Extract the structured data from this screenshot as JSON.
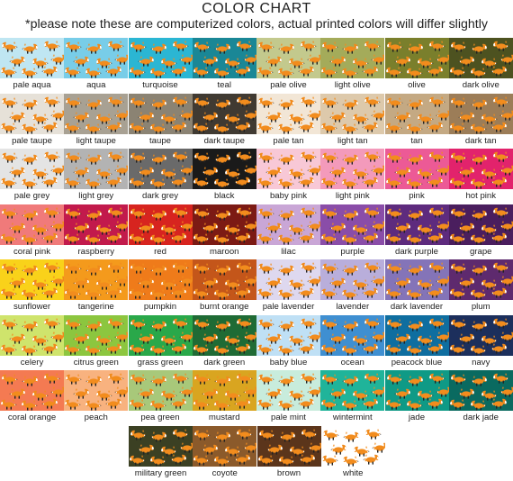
{
  "header": {
    "title": "COLOR CHART",
    "note": "*please note these are computerized colors, actual printed colors will differ slightly"
  },
  "swatches": [
    [
      {
        "name": "pale aqua",
        "color": "#bfe6f2"
      },
      {
        "name": "aqua",
        "color": "#78cde8"
      },
      {
        "name": "turquoise",
        "color": "#2bb6d3"
      },
      {
        "name": "teal",
        "color": "#1a8796"
      },
      {
        "name": "pale olive",
        "color": "#c3c98d"
      },
      {
        "name": "light olive",
        "color": "#a4ab5a"
      },
      {
        "name": "olive",
        "color": "#7a7f2c"
      },
      {
        "name": "dark olive",
        "color": "#4d5220"
      }
    ],
    [
      {
        "name": "pale taupe",
        "color": "#e6e1d8"
      },
      {
        "name": "light taupe",
        "color": "#a8a193"
      },
      {
        "name": "taupe",
        "color": "#8b8373"
      },
      {
        "name": "dark taupe",
        "color": "#403a32"
      },
      {
        "name": "pale tan",
        "color": "#f2e6d6"
      },
      {
        "name": "light tan",
        "color": "#ddc9ab"
      },
      {
        "name": "tan",
        "color": "#c4a983"
      },
      {
        "name": "dark tan",
        "color": "#9c7d58"
      }
    ],
    [
      {
        "name": "pale grey",
        "color": "#e4e4e4"
      },
      {
        "name": "light grey",
        "color": "#b3b3b3"
      },
      {
        "name": "dark grey",
        "color": "#6a6a6a"
      },
      {
        "name": "black",
        "color": "#1a1a1a"
      },
      {
        "name": "baby pink",
        "color": "#f8c8d6"
      },
      {
        "name": "light pink",
        "color": "#f39abb"
      },
      {
        "name": "pink",
        "color": "#ec5a96"
      },
      {
        "name": "hot pink",
        "color": "#e2236c"
      }
    ],
    [
      {
        "name": "coral pink",
        "color": "#f07a7a"
      },
      {
        "name": "raspberry",
        "color": "#c21a4c"
      },
      {
        "name": "red",
        "color": "#d7241f"
      },
      {
        "name": "maroon",
        "color": "#7c1a14"
      },
      {
        "name": "lilac",
        "color": "#c9a6d6"
      },
      {
        "name": "purple",
        "color": "#8a4da8"
      },
      {
        "name": "dark purple",
        "color": "#5e2b7e"
      },
      {
        "name": "grape",
        "color": "#4a1e5e"
      }
    ],
    [
      {
        "name": "sunflower",
        "color": "#f9d21a"
      },
      {
        "name": "tangerine",
        "color": "#f49a1c"
      },
      {
        "name": "pumpkin",
        "color": "#ef7b1a"
      },
      {
        "name": "burnt orange",
        "color": "#c4561a"
      },
      {
        "name": "pale lavender",
        "color": "#ded8ef"
      },
      {
        "name": "lavender",
        "color": "#b9aedb"
      },
      {
        "name": "dark lavender",
        "color": "#8474b8"
      },
      {
        "name": "plum",
        "color": "#5e2a6e"
      }
    ],
    [
      {
        "name": "celery",
        "color": "#cfe46c"
      },
      {
        "name": "citrus green",
        "color": "#8cc63f"
      },
      {
        "name": "grass green",
        "color": "#2aa84a"
      },
      {
        "name": "dark green",
        "color": "#1f6b35"
      },
      {
        "name": "baby blue",
        "color": "#bfe0f5"
      },
      {
        "name": "ocean",
        "color": "#3f8fd1"
      },
      {
        "name": "peacock blue",
        "color": "#0f6ea0"
      },
      {
        "name": "navy",
        "color": "#1c2f5c"
      }
    ],
    [
      {
        "name": "coral orange",
        "color": "#f47a52"
      },
      {
        "name": "peach",
        "color": "#f8b27f"
      },
      {
        "name": "pea green",
        "color": "#a8c87a"
      },
      {
        "name": "mustard",
        "color": "#d9a520"
      },
      {
        "name": "pale mint",
        "color": "#c8ecdc"
      },
      {
        "name": "wintermint",
        "color": "#20b49a"
      },
      {
        "name": "jade",
        "color": "#0f9a86"
      },
      {
        "name": "dark jade",
        "color": "#0a6a60"
      }
    ],
    [
      {
        "name": "military green",
        "color": "#3b4023"
      },
      {
        "name": "coyote",
        "color": "#8b5a2b"
      },
      {
        "name": "brown",
        "color": "#5b351b"
      },
      {
        "name": "white",
        "color": "#ffffff"
      }
    ]
  ]
}
